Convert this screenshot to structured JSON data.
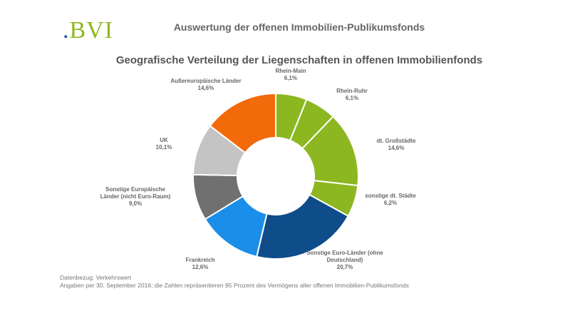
{
  "header": {
    "logo_dot": ".",
    "logo_text": "BVI",
    "title": "Auswertung der offenen Immobilien-Publikumsfonds"
  },
  "colors": {
    "green": "#8db720",
    "orange": "#f26a0a",
    "light_gray": "#c4c4c4",
    "dark_gray": "#707070",
    "light_blue": "#1a8ee8",
    "dark_blue": "#0f4c8a"
  },
  "chart_data": {
    "type": "pie",
    "title": "Geografische Verteilung der Liegenschaften in offenen Immobilienfonds",
    "donut": true,
    "slices": [
      {
        "lines": [
          "Rhein-Main",
          "6,1%"
        ],
        "value": 6.1,
        "color": "#8db720"
      },
      {
        "lines": [
          "Rhein-Ruhr",
          "6,1%"
        ],
        "value": 6.1,
        "color": "#8db720"
      },
      {
        "lines": [
          "dt. Großstädte",
          "14,6%"
        ],
        "value": 14.6,
        "color": "#8db720"
      },
      {
        "lines": [
          "sonstige dt. Städte",
          "6,2%"
        ],
        "value": 6.2,
        "color": "#8db720"
      },
      {
        "lines": [
          "Sonstige Euro-Länder (ohne",
          "Deutschland)",
          "20,7%"
        ],
        "value": 20.7,
        "color": "#0f4c8a"
      },
      {
        "lines": [
          "Frankreich",
          "12,6%"
        ],
        "value": 12.6,
        "color": "#1a8ee8"
      },
      {
        "lines": [
          "Sonstige Europäische",
          "Länder (nicht Euro-Raum)",
          "9,0%"
        ],
        "value": 9.0,
        "color": "#707070"
      },
      {
        "lines": [
          "UK",
          "10,1%"
        ],
        "value": 10.1,
        "color": "#c4c4c4"
      },
      {
        "lines": [
          "Außereuropäische Länder",
          "14,6%"
        ],
        "value": 14.6,
        "color": "#f26a0a"
      }
    ]
  },
  "footnote": {
    "line1": "Datenbezug: Verkehrswert",
    "line2": "Angaben per 30. September 2016; die Zahlen repräsentieren 95 Prozent des Vermögens aller offenen Immobilien-Publikumsfonds"
  }
}
